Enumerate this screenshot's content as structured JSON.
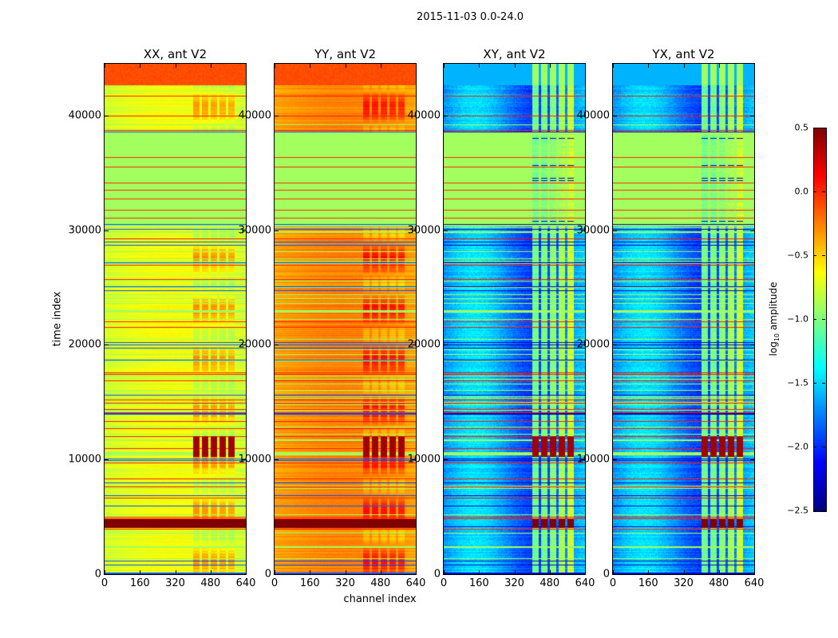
{
  "chart_data": {
    "type": "heatmap",
    "title": "2015-11-03 0.0-24.0",
    "xlabel": "channel index",
    "ylabel": "time index",
    "xlim": [
      0,
      640
    ],
    "ylim": [
      0,
      44500
    ],
    "xticks": [
      0,
      160,
      320,
      480,
      640
    ],
    "yticks": [
      0,
      10000,
      20000,
      30000,
      40000
    ],
    "panels": [
      {
        "title": "XX, ant V2",
        "base_log_amp": -0.75
      },
      {
        "title": "YY, ant V2",
        "base_log_amp": -0.35
      },
      {
        "title": "XY, ant V2",
        "base_log_amp": -1.7
      },
      {
        "title": "YX, ant V2",
        "base_log_amp": -1.7
      }
    ],
    "rfi_channel_range": [
      400,
      600
    ],
    "features": [
      {
        "time_range": [
          4000,
          4800
        ],
        "log_amp": 0.5,
        "note": "saturated band"
      },
      {
        "time_range": [
          10200,
          12000
        ],
        "log_amp": 0.4,
        "channels": [
          400,
          600
        ]
      },
      {
        "time_range": [
          30500,
          38500
        ],
        "log_amp": -0.9,
        "note": "flagged block"
      },
      {
        "time_range": [
          42600,
          44500
        ],
        "log_amp": -0.1
      }
    ],
    "colorbar": {
      "label": "log10 amplitude",
      "label_main": "log",
      "label_sub": "10",
      "label_rest": " amplitude",
      "colormap": "jet",
      "range": [
        -2.5,
        0.5
      ],
      "ticks": [
        "0.5",
        "0.0",
        "−0.5",
        "−1.0",
        "−1.5",
        "−2.0",
        "−2.5"
      ]
    }
  }
}
